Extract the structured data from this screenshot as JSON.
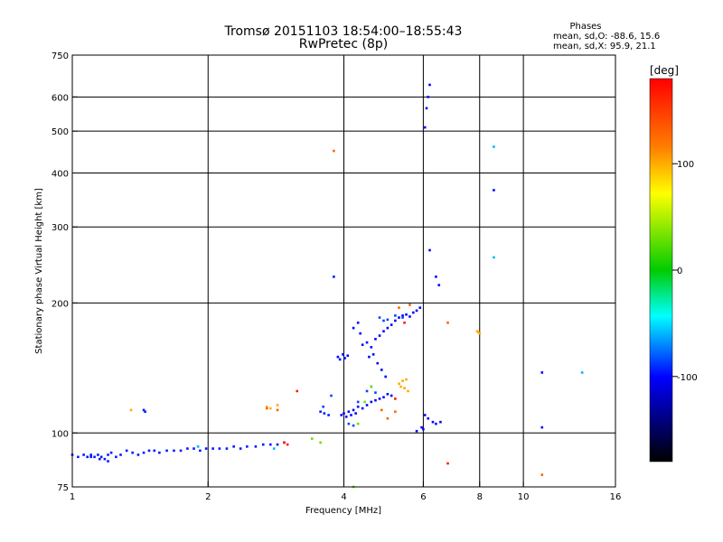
{
  "chart_data": {
    "type": "scatter",
    "title": "Tromsø 20151103 18:54:00–18:55:43",
    "subtitle": "RwPretec (8p)",
    "xlabel": "Frequency [MHz]",
    "ylabel": "Stationary phase Virtual Height [km]",
    "x_scale": "log",
    "y_scale": "log",
    "xlim": [
      1,
      16
    ],
    "ylim": [
      75,
      750
    ],
    "x_ticks": [
      1,
      2,
      4,
      6,
      8,
      10,
      16
    ],
    "y_ticks": [
      75,
      100,
      200,
      300,
      400,
      500,
      600,
      750
    ],
    "x_grid": [
      2,
      4,
      6,
      8,
      10
    ],
    "y_grid": [
      100,
      200,
      300,
      400,
      500,
      600
    ],
    "stats": {
      "heading": "Phases",
      "line_o": "mean, sd,O: -88.6, 15.6",
      "line_x": "mean, sd,X:  95.9, 21.1"
    },
    "colorbar": {
      "label": "[deg]",
      "range": [
        -180,
        180
      ],
      "ticks": [
        100,
        0,
        -100
      ],
      "colors": [
        "#ff0000",
        "#ff7f00",
        "#ffff00",
        "#00cc00",
        "#00ffff",
        "#0000ff",
        "#000000"
      ]
    },
    "point_groups": [
      {
        "phase": -95,
        "points": [
          [
            1.0,
            89
          ],
          [
            1.03,
            88
          ],
          [
            1.06,
            89
          ],
          [
            1.08,
            88
          ],
          [
            1.1,
            89
          ],
          [
            1.12,
            88
          ],
          [
            1.14,
            89
          ],
          [
            1.16,
            88
          ],
          [
            1.18,
            87
          ],
          [
            1.2,
            89
          ],
          [
            1.22,
            90
          ],
          [
            1.25,
            88
          ],
          [
            1.28,
            89
          ],
          [
            1.32,
            91
          ],
          [
            1.36,
            90
          ],
          [
            1.4,
            89
          ],
          [
            1.44,
            90
          ],
          [
            1.48,
            91
          ],
          [
            1.52,
            91
          ],
          [
            1.56,
            90
          ],
          [
            1.62,
            91
          ],
          [
            1.68,
            91
          ],
          [
            1.74,
            91
          ],
          [
            1.8,
            92
          ],
          [
            1.86,
            92
          ],
          [
            1.92,
            91
          ],
          [
            1.98,
            92
          ],
          [
            2.05,
            92
          ],
          [
            2.12,
            92
          ],
          [
            2.2,
            92
          ],
          [
            2.28,
            93
          ],
          [
            2.36,
            92
          ],
          [
            2.44,
            93
          ],
          [
            2.55,
            93
          ],
          [
            2.65,
            94
          ],
          [
            2.75,
            94
          ],
          [
            2.85,
            94
          ],
          [
            2.95,
            95
          ],
          [
            1.45,
            112
          ],
          [
            1.44,
            113
          ],
          [
            3.55,
            112
          ],
          [
            3.62,
            111
          ],
          [
            3.7,
            110
          ],
          [
            3.8,
            230
          ],
          [
            1.1,
            88
          ],
          [
            1.15,
            87
          ],
          [
            1.2,
            86
          ]
        ]
      },
      {
        "phase": -100,
        "points": [
          [
            3.95,
            110
          ],
          [
            4.0,
            111
          ],
          [
            4.05,
            109
          ],
          [
            4.1,
            112
          ],
          [
            4.15,
            110
          ],
          [
            4.2,
            113
          ],
          [
            4.25,
            111
          ],
          [
            4.3,
            115
          ],
          [
            4.4,
            114
          ],
          [
            4.5,
            116
          ],
          [
            4.6,
            118
          ],
          [
            4.7,
            119
          ],
          [
            4.8,
            120
          ],
          [
            4.9,
            121
          ],
          [
            5.0,
            123
          ],
          [
            5.1,
            122
          ],
          [
            4.4,
            160
          ],
          [
            4.5,
            162
          ],
          [
            4.6,
            158
          ],
          [
            4.7,
            165
          ],
          [
            4.8,
            168
          ],
          [
            4.9,
            172
          ],
          [
            5.0,
            175
          ],
          [
            5.1,
            178
          ],
          [
            5.2,
            182
          ],
          [
            5.3,
            185
          ],
          [
            5.4,
            187
          ],
          [
            5.5,
            188
          ],
          [
            5.6,
            186
          ],
          [
            5.7,
            190
          ],
          [
            5.8,
            192
          ],
          [
            5.9,
            195
          ],
          [
            4.2,
            175
          ],
          [
            4.3,
            180
          ],
          [
            4.35,
            170
          ],
          [
            4.55,
            150
          ],
          [
            4.65,
            152
          ],
          [
            4.75,
            145
          ],
          [
            4.85,
            140
          ],
          [
            4.95,
            135
          ],
          [
            3.88,
            150
          ],
          [
            3.92,
            148
          ],
          [
            3.98,
            152
          ],
          [
            4.02,
            149
          ],
          [
            4.08,
            151
          ],
          [
            6.05,
            110
          ],
          [
            6.15,
            108
          ],
          [
            6.3,
            106
          ],
          [
            6.4,
            105
          ],
          [
            6.55,
            106
          ],
          [
            6.2,
            640
          ],
          [
            6.15,
            600
          ],
          [
            6.1,
            565
          ],
          [
            6.05,
            510
          ],
          [
            6.2,
            265
          ],
          [
            6.4,
            230
          ],
          [
            6.5,
            220
          ],
          [
            8.6,
            365
          ],
          [
            11.0,
            138
          ],
          [
            11.0,
            103
          ],
          [
            6.0,
            102
          ],
          [
            5.8,
            101
          ],
          [
            5.95,
            103
          ]
        ]
      },
      {
        "phase": -85,
        "points": [
          [
            4.8,
            185
          ],
          [
            4.9,
            182
          ],
          [
            5.0,
            183
          ],
          [
            5.2,
            187
          ],
          [
            5.4,
            185
          ],
          [
            4.6,
            128
          ],
          [
            4.7,
            124
          ],
          [
            4.5,
            125
          ],
          [
            4.3,
            118
          ],
          [
            4.1,
            105
          ],
          [
            4.2,
            104
          ],
          [
            3.6,
            115
          ],
          [
            3.75,
            122
          ]
        ]
      },
      {
        "phase": -60,
        "points": [
          [
            8.6,
            460
          ],
          [
            13.5,
            138
          ],
          [
            8.6,
            255
          ],
          [
            1.9,
            93
          ],
          [
            2.8,
            92
          ]
        ]
      },
      {
        "phase": 30,
        "points": [
          [
            4.3,
            105
          ],
          [
            4.45,
            118
          ],
          [
            4.6,
            128
          ],
          [
            3.4,
            97
          ],
          [
            3.55,
            95
          ],
          [
            4.2,
            75
          ]
        ]
      },
      {
        "phase": 100,
        "points": [
          [
            5.3,
            130
          ],
          [
            5.35,
            128
          ],
          [
            5.4,
            132
          ],
          [
            5.45,
            127
          ],
          [
            5.5,
            133
          ],
          [
            5.55,
            125
          ],
          [
            7.9,
            172
          ],
          [
            7.95,
            171
          ],
          [
            8.0,
            170
          ],
          [
            1.35,
            113
          ],
          [
            2.7,
            115
          ],
          [
            2.75,
            114
          ],
          [
            2.85,
            116
          ]
        ]
      },
      {
        "phase": 130,
        "points": [
          [
            3.8,
            450
          ],
          [
            2.7,
            114
          ],
          [
            2.85,
            113
          ],
          [
            5.3,
            195
          ],
          [
            5.6,
            198
          ],
          [
            6.8,
            180
          ],
          [
            11.0,
            80
          ],
          [
            4.85,
            113
          ],
          [
            5.0,
            108
          ],
          [
            5.2,
            112
          ]
        ]
      },
      {
        "phase": 165,
        "points": [
          [
            3.15,
            125
          ],
          [
            6.8,
            85
          ],
          [
            2.95,
            95
          ],
          [
            3.0,
            94
          ],
          [
            5.45,
            180
          ],
          [
            5.2,
            120
          ]
        ]
      }
    ]
  }
}
